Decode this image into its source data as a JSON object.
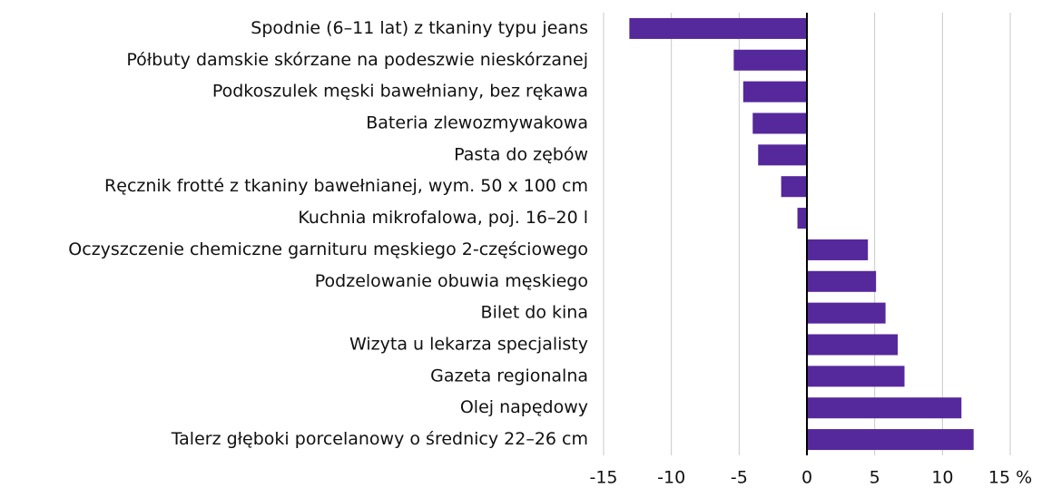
{
  "chart_data": {
    "type": "barh",
    "categories": [
      "Spodnie (6–11 lat) z tkaniny typu jeans",
      "Półbuty damskie skórzane na podeszwie nieskórzanej",
      "Podkoszulek męski bawełniany, bez rękawa",
      "Bateria zlewozmywakowa",
      "Pasta do zębów",
      "Ręcznik frotté z tkaniny bawełnianej, wym. 50 x 100 cm",
      "Kuchnia mikrofalowa, poj. 16–20 l",
      "Oczyszczenie chemiczne garnituru męskiego 2-częściowego",
      "Podzelowanie obuwia męskiego",
      "Bilet do kina",
      "Wizyta u lekarza specjalisty",
      "Gazeta regionalna",
      "Olej napędowy",
      "Talerz głęboki porcelanowy o średnicy 22–26 cm"
    ],
    "values": [
      -13.1,
      -5.4,
      -4.7,
      -4.0,
      -3.6,
      -1.9,
      -0.7,
      4.5,
      5.1,
      5.8,
      6.7,
      7.2,
      11.4,
      12.3
    ],
    "color": "#55289c",
    "xlim": [
      -15,
      15
    ],
    "xticks": [
      -15,
      -10,
      -5,
      0,
      5,
      10,
      {
        "value": 15,
        "label": "15 %"
      }
    ],
    "grid": true
  }
}
